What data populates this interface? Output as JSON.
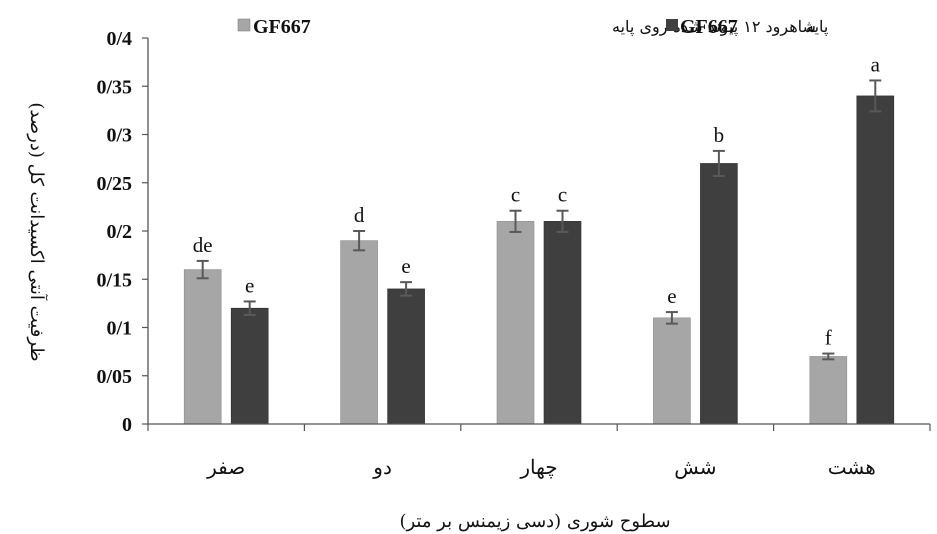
{
  "chart_data": {
    "type": "bar",
    "categories": [
      "صفر",
      "دو",
      "چهار",
      "شش",
      "هشت"
    ],
    "series": [
      {
        "name": "شاهرود ۱۲ پیوند شده روی پایه GF667",
        "legend_text": "شاهرود ۱۲ پیوند شده روی پایه",
        "legend_code": "GF667",
        "color": "#a6a6a6",
        "values": [
          0.16,
          0.19,
          0.21,
          0.11,
          0.07
        ],
        "errors": [
          0.009,
          0.01,
          0.011,
          0.006,
          0.003
        ],
        "letters": [
          "de",
          "d",
          "c",
          "e",
          "f"
        ]
      },
      {
        "name": "پایه GF667",
        "legend_text": "پایه",
        "legend_code": "GF667",
        "color": "#3f3f3f",
        "values": [
          0.12,
          0.14,
          0.21,
          0.27,
          0.34
        ],
        "errors": [
          0.007,
          0.007,
          0.011,
          0.013,
          0.016
        ],
        "letters": [
          "e",
          "e",
          "c",
          "b",
          "a"
        ]
      }
    ],
    "ylim": [
      0,
      0.4
    ],
    "yticks": [
      0,
      0.05,
      0.1,
      0.15,
      0.2,
      0.25,
      0.3,
      0.35,
      0.4
    ],
    "ytick_labels": [
      "0",
      "0/05",
      "0/1",
      "0/15",
      "0/2",
      "0/25",
      "0/3",
      "0/35",
      "0/4"
    ],
    "xlabel": "سطوح شوری (دسی زیمنس بر متر)",
    "ylabel": "ظرفیت آنتی اکسیدانت کل (درصد)",
    "legend_position": "top",
    "grid": false,
    "error_bar_color": "#595959"
  }
}
